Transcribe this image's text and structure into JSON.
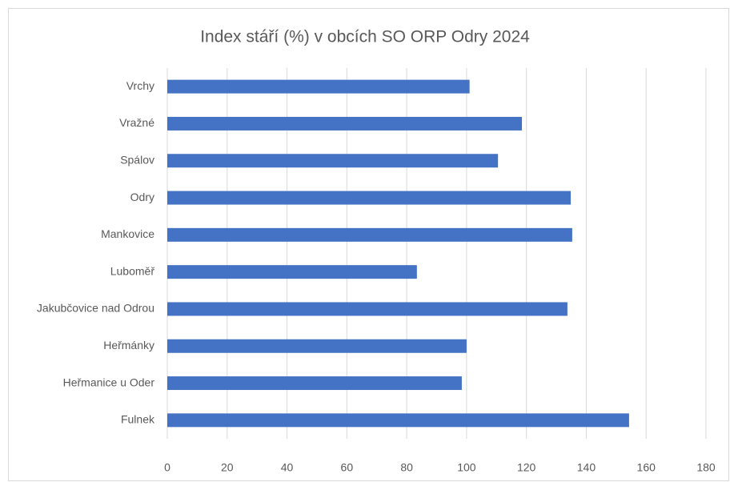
{
  "chart_data": {
    "type": "barh",
    "title": "Index stáří (%) v obcích SO ORP Odry 2024",
    "categories": [
      "Vrchy",
      "Vražné",
      "Spálov",
      "Odry",
      "Mankovice",
      "Luboměř",
      "Jakubčovice nad Odrou",
      "Heřmánky",
      "Heřmanice u Oder",
      "Fulnek"
    ],
    "values": [
      101,
      118.5,
      110.5,
      134.8,
      135.3,
      83.4,
      133.7,
      100,
      98.4,
      154.3
    ],
    "color": "#4472c4",
    "xlim": [
      0,
      180
    ],
    "xticks": [
      0,
      20,
      40,
      60,
      80,
      100,
      120,
      140,
      160,
      180
    ],
    "grid": true
  }
}
